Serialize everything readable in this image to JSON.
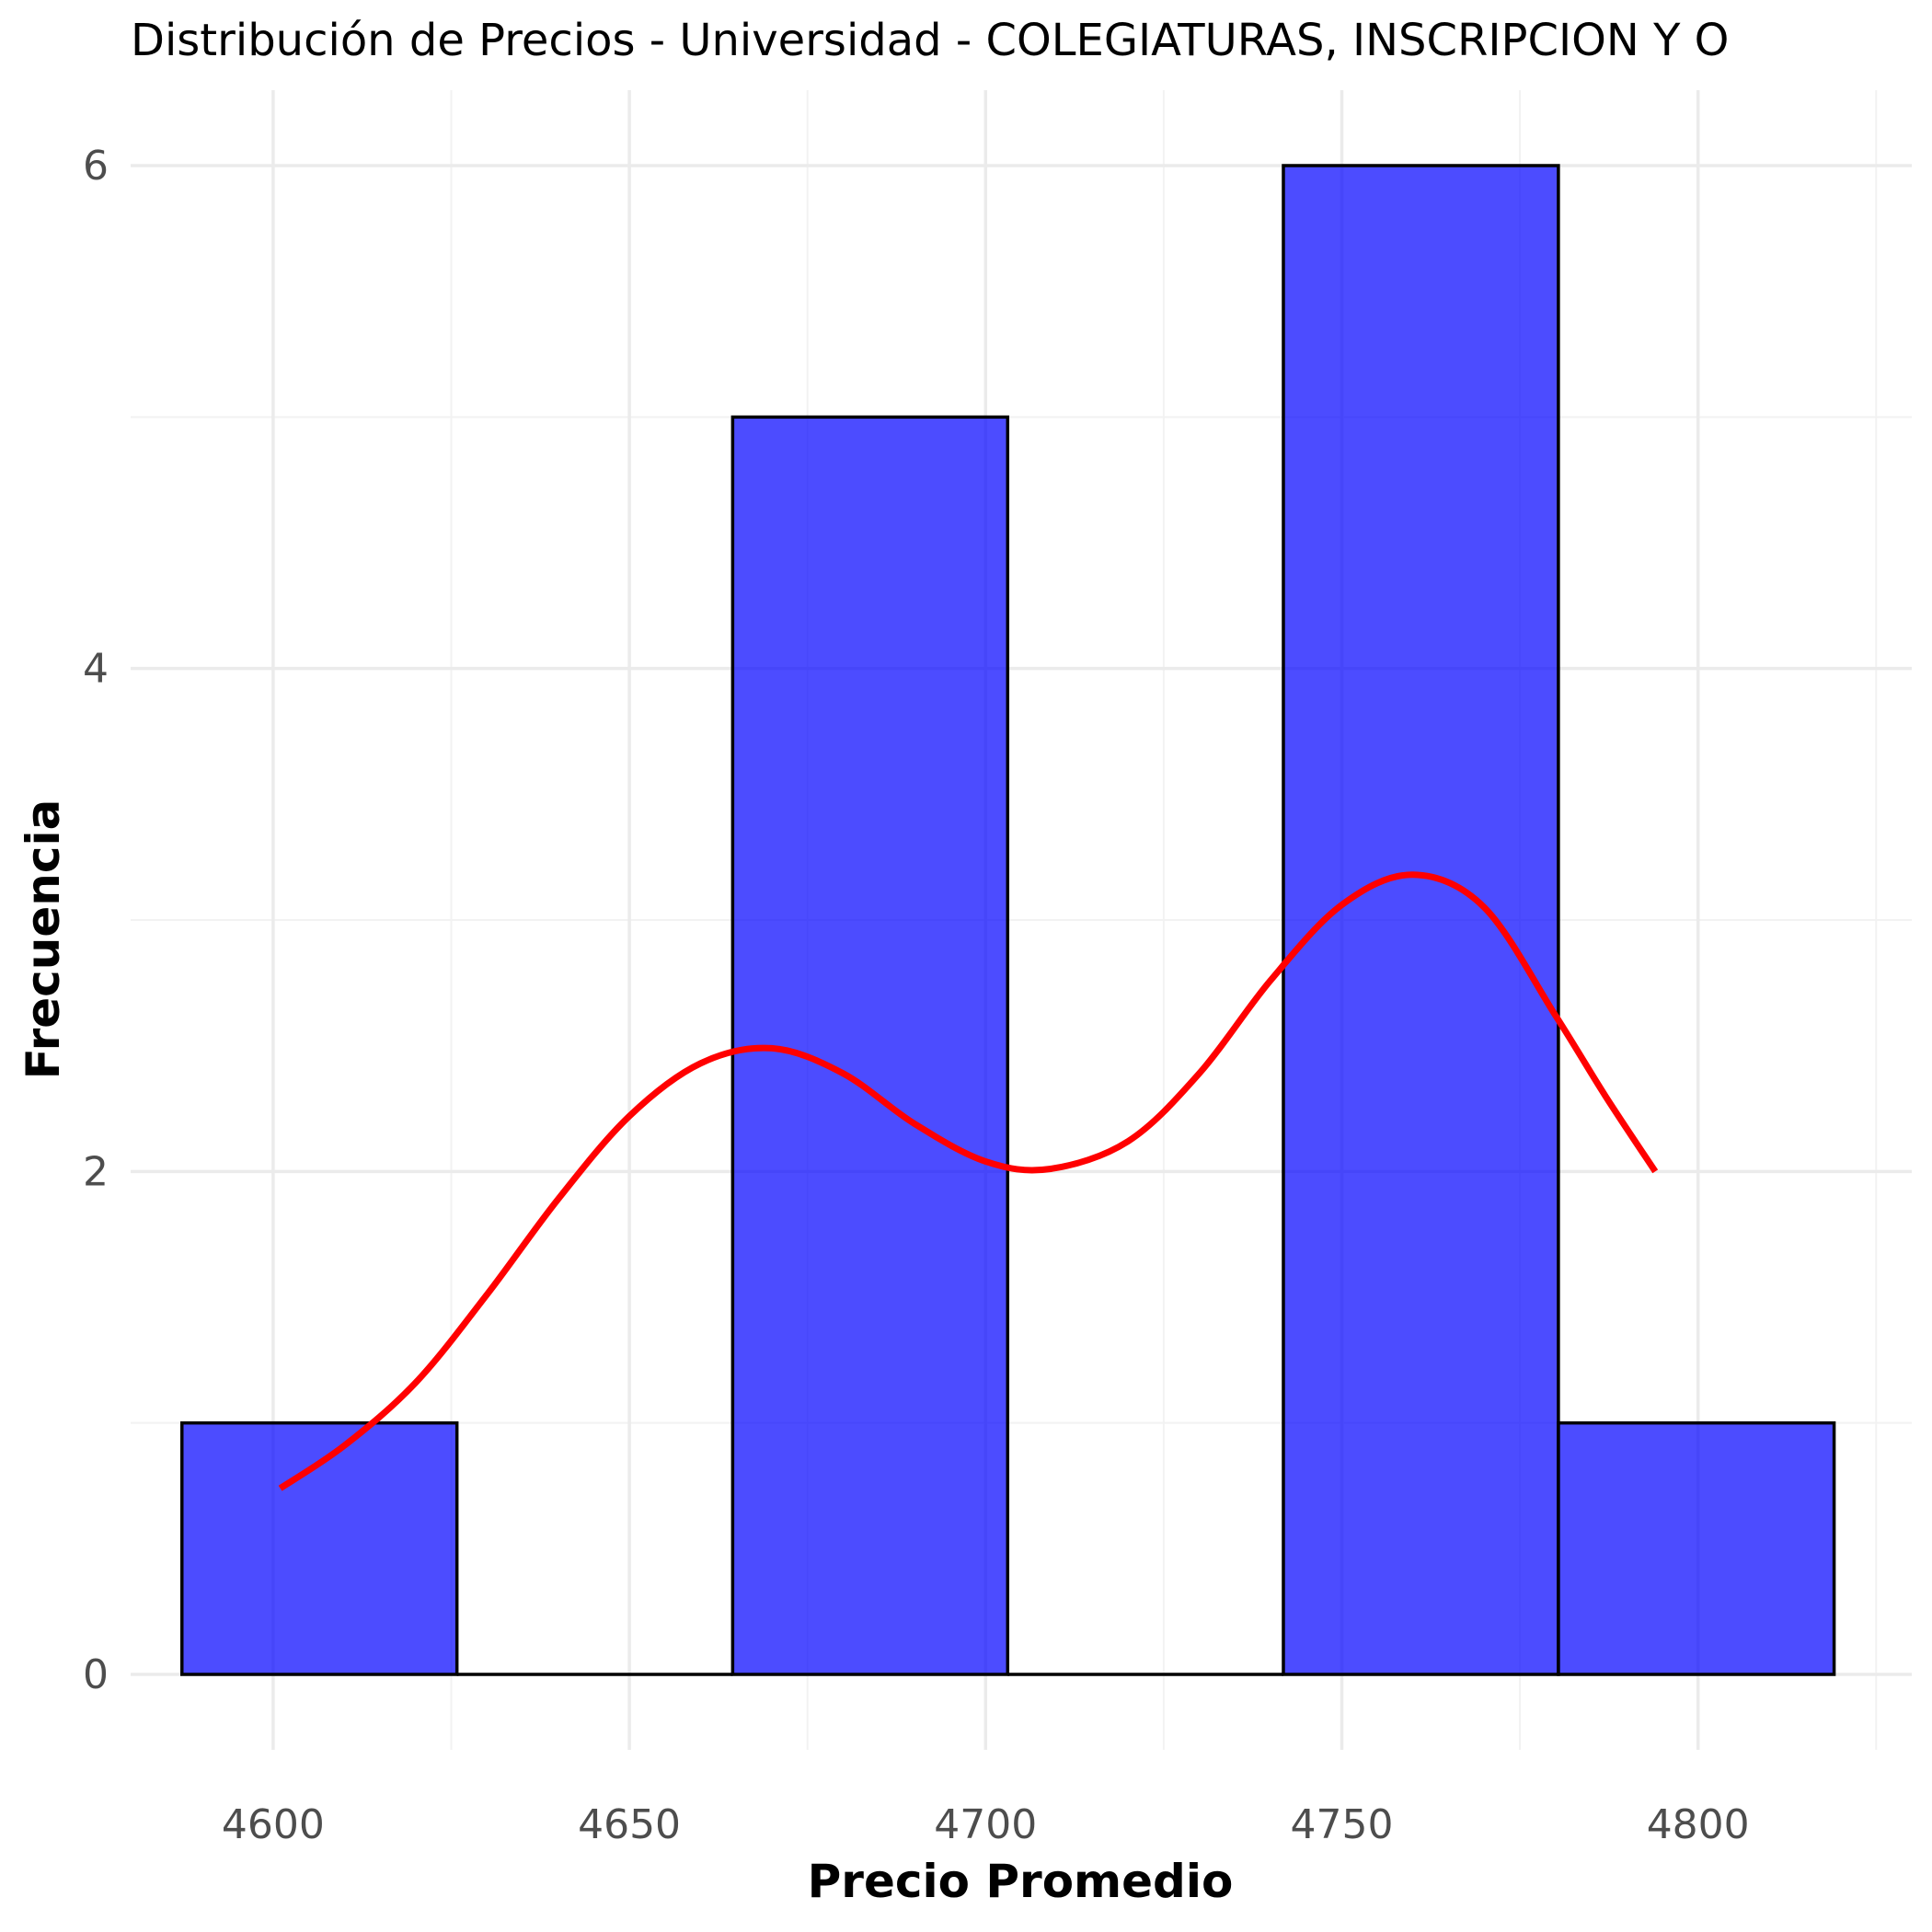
{
  "chart_data": {
    "type": "bar",
    "subtype": "histogram",
    "title": "Distribución de Precios - Universidad - COLEGIATURAS, INSCRIPCION Y O",
    "xlabel": "Precio Promedio",
    "ylabel": "Frecuencia",
    "x_ticks": [
      4600,
      4650,
      4700,
      4750,
      4800
    ],
    "y_ticks": [
      0,
      2,
      4,
      6
    ],
    "xlim": [
      4580,
      4830
    ],
    "ylim": [
      -0.3,
      6.3
    ],
    "grid": true,
    "bins": [
      {
        "x0": 4587.2,
        "x1": 4625.8,
        "count": 1
      },
      {
        "x0": 4625.8,
        "x1": 4664.5,
        "count": 0
      },
      {
        "x0": 4664.5,
        "x1": 4703.1,
        "count": 5
      },
      {
        "x0": 4703.1,
        "x1": 4741.8,
        "count": 0
      },
      {
        "x0": 4741.8,
        "x1": 4780.4,
        "count": 6
      },
      {
        "x0": 4780.4,
        "x1": 4819.1,
        "count": 1
      }
    ],
    "density_curve": {
      "x": [
        4601,
        4610,
        4620,
        4630,
        4640,
        4650,
        4660,
        4670,
        4680,
        4690,
        4700,
        4709,
        4720,
        4730,
        4740,
        4750,
        4760,
        4770,
        4780,
        4787,
        4794
      ],
      "y": [
        0.74,
        0.91,
        1.16,
        1.51,
        1.89,
        2.22,
        2.43,
        2.49,
        2.39,
        2.19,
        2.04,
        2.01,
        2.12,
        2.39,
        2.76,
        3.06,
        3.18,
        3.05,
        2.62,
        2.3,
        2.0
      ]
    },
    "colors": {
      "bar_fill": "#0000ff",
      "bar_fill_opacity": 0.7,
      "bar_outline": "#000000",
      "curve": "#ff0000",
      "grid": "#ebebeb"
    }
  }
}
